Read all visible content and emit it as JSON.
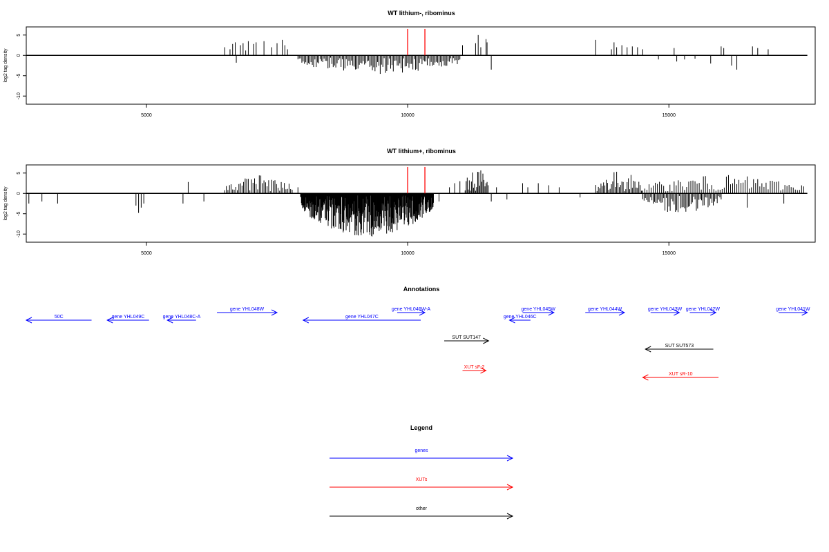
{
  "chart_data": [
    {
      "type": "bar",
      "title": "WT lithium-, ribominus",
      "ylabel": "log2 tag density",
      "xlim": [
        2700,
        17800
      ],
      "ylim": [
        -12,
        7
      ],
      "xticks": [
        5000,
        10000,
        15000
      ],
      "yticks": [
        5,
        0,
        -5,
        -10
      ],
      "baseline": {
        "x": [
          2700,
          17650
        ],
        "y": 0
      },
      "markers": [
        10000,
        10330
      ],
      "marker_color": "#ff0000",
      "dense_regions": [
        {
          "x": [
            7900,
            11000
          ],
          "sign": -1,
          "amp": 4.2,
          "step": 25
        }
      ],
      "bars": [
        [
          2700,
          -2.5
        ],
        [
          6500,
          2.0
        ],
        [
          6600,
          1.5
        ],
        [
          6650,
          2.8
        ],
        [
          6700,
          3.2
        ],
        [
          6720,
          -1.8
        ],
        [
          6800,
          2.5
        ],
        [
          6850,
          3.0
        ],
        [
          6900,
          1.2
        ],
        [
          6950,
          3.5
        ],
        [
          7050,
          2.8
        ],
        [
          7100,
          3.2
        ],
        [
          7250,
          3.5
        ],
        [
          7400,
          2.0
        ],
        [
          7500,
          3.0
        ],
        [
          7600,
          3.8
        ],
        [
          7650,
          2.5
        ],
        [
          7700,
          1.5
        ],
        [
          10350,
          -1.5
        ],
        [
          10600,
          -2.5
        ],
        [
          11050,
          2.5
        ],
        [
          11300,
          3.0
        ],
        [
          11350,
          5.0
        ],
        [
          11400,
          2.0
        ],
        [
          11500,
          4.0
        ],
        [
          11520,
          3.2
        ],
        [
          11600,
          -3.5
        ],
        [
          13600,
          3.8
        ],
        [
          13900,
          1.5
        ],
        [
          13950,
          3.2
        ],
        [
          14000,
          2.0
        ],
        [
          14100,
          2.5
        ],
        [
          14200,
          2.0
        ],
        [
          14300,
          2.2
        ],
        [
          14400,
          2.0
        ],
        [
          14500,
          1.5
        ],
        [
          14800,
          -1.0
        ],
        [
          15100,
          1.8
        ],
        [
          15150,
          -1.5
        ],
        [
          15300,
          -1.0
        ],
        [
          15500,
          -0.8
        ],
        [
          15800,
          -2.0
        ],
        [
          16000,
          2.2
        ],
        [
          16050,
          1.8
        ],
        [
          16200,
          -2.5
        ],
        [
          16300,
          -3.5
        ],
        [
          16600,
          2.2
        ],
        [
          16700,
          1.8
        ],
        [
          16900,
          1.5
        ]
      ]
    },
    {
      "type": "bar",
      "title": "WT lithium+, ribominus",
      "ylabel": "log2 tag density",
      "xlim": [
        2700,
        17800
      ],
      "ylim": [
        -12,
        7
      ],
      "xticks": [
        5000,
        10000,
        15000
      ],
      "yticks": [
        5,
        0,
        -5,
        -10
      ],
      "baseline": {
        "x": [
          2700,
          17650
        ],
        "y": 0
      },
      "markers": [
        10000,
        10330
      ],
      "marker_color": "#ff0000",
      "dense_regions": [
        {
          "x": [
            6500,
            7800
          ],
          "sign": 1,
          "amp": 4.0,
          "step": 30
        },
        {
          "x": [
            7950,
            10500
          ],
          "sign": -1,
          "amp": 10.5,
          "step": 8
        },
        {
          "x": [
            11100,
            11550
          ],
          "sign": 1,
          "amp": 6.0,
          "step": 20
        },
        {
          "x": [
            13600,
            14500
          ],
          "sign": 1,
          "amp": 5.0,
          "step": 25
        },
        {
          "x": [
            14500,
            16000
          ],
          "sign": -1,
          "amp": 4.5,
          "step": 25
        },
        {
          "x": [
            14500,
            17600
          ],
          "sign": 1,
          "amp": 4.0,
          "step": 40
        }
      ],
      "bars": [
        [
          2700,
          -3.5
        ],
        [
          2750,
          -2.5
        ],
        [
          3000,
          -2.0
        ],
        [
          3300,
          -2.5
        ],
        [
          4800,
          -3.0
        ],
        [
          4850,
          -4.8
        ],
        [
          4900,
          -3.5
        ],
        [
          4950,
          -2.5
        ],
        [
          5700,
          -2.5
        ],
        [
          5800,
          2.8
        ],
        [
          6100,
          -2.0
        ],
        [
          7900,
          1.5
        ],
        [
          10600,
          -2.0
        ],
        [
          10800,
          1.5
        ],
        [
          10900,
          2.5
        ],
        [
          11000,
          3.0
        ],
        [
          11600,
          -2.0
        ],
        [
          11700,
          1.5
        ],
        [
          11900,
          -1.5
        ],
        [
          12200,
          2.5
        ],
        [
          12300,
          1.5
        ],
        [
          12500,
          2.5
        ],
        [
          12700,
          2.0
        ],
        [
          12900,
          1.5
        ],
        [
          13300,
          -1.0
        ],
        [
          16500,
          -3.5
        ],
        [
          17200,
          -2.5
        ]
      ]
    }
  ],
  "annotations": {
    "title": "Annotations",
    "xlim": [
      2700,
      17800
    ],
    "features": [
      {
        "label": "50C",
        "x1": 2700,
        "x2": 3950,
        "row": 1,
        "dir": "left",
        "color": "#0000ff"
      },
      {
        "label": "gene YHL049C",
        "x1": 4250,
        "x2": 5050,
        "row": 1,
        "dir": "left",
        "color": "#0000ff"
      },
      {
        "label": "gene YHL048C-A",
        "x1": 5400,
        "x2": 5950,
        "row": 1,
        "dir": "left",
        "color": "#0000ff"
      },
      {
        "label": "gene YHL048W",
        "x1": 6350,
        "x2": 7500,
        "row": 0,
        "dir": "right",
        "color": "#0000ff"
      },
      {
        "label": "gene YHL047C",
        "x1": 8000,
        "x2": 10250,
        "row": 1,
        "dir": "left",
        "color": "#0000ff"
      },
      {
        "label": "gene YHL046W-A",
        "x1": 9800,
        "x2": 10330,
        "row": 0,
        "dir": "right",
        "color": "#0000ff"
      },
      {
        "label": "gene YHL045W",
        "x1": 12200,
        "x2": 12800,
        "row": 0,
        "dir": "right",
        "color": "#0000ff"
      },
      {
        "label": "gene YHL046C",
        "x1": 11950,
        "x2": 12350,
        "row": 1,
        "dir": "left",
        "color": "#0000ff"
      },
      {
        "label": "gene YHL044W",
        "x1": 13400,
        "x2": 14150,
        "row": 0,
        "dir": "right",
        "color": "#0000ff"
      },
      {
        "label": "gene YHL043W",
        "x1": 14650,
        "x2": 15200,
        "row": 0,
        "dir": "right",
        "color": "#0000ff"
      },
      {
        "label": "gene YHL042W",
        "x1": 15400,
        "x2": 15900,
        "row": 0,
        "dir": "right",
        "color": "#0000ff"
      },
      {
        "label": "gene YHL041W",
        "x1": 17100,
        "x2": 17650,
        "row": 0,
        "dir": "right",
        "color": "#0000ff"
      },
      {
        "label": "SUT SUT147",
        "x1": 10700,
        "x2": 11550,
        "row": 2,
        "dir": "right",
        "color": "#000000"
      },
      {
        "label": "SUT SUT573",
        "x1": 14550,
        "x2": 15850,
        "row": 3,
        "dir": "left",
        "color": "#000000"
      },
      {
        "label": "XUT sF-2",
        "x1": 11050,
        "x2": 11500,
        "row": 4,
        "dir": "right",
        "color": "#ff0000"
      },
      {
        "label": "XUT sR-10",
        "x1": 14500,
        "x2": 15950,
        "row": 5,
        "dir": "left",
        "color": "#ff0000"
      }
    ]
  },
  "legend": {
    "title": "Legend",
    "items": [
      {
        "label": "genes",
        "color": "#0000ff"
      },
      {
        "label": "XUTs",
        "color": "#ff0000"
      },
      {
        "label": "other",
        "color": "#000000"
      }
    ]
  }
}
